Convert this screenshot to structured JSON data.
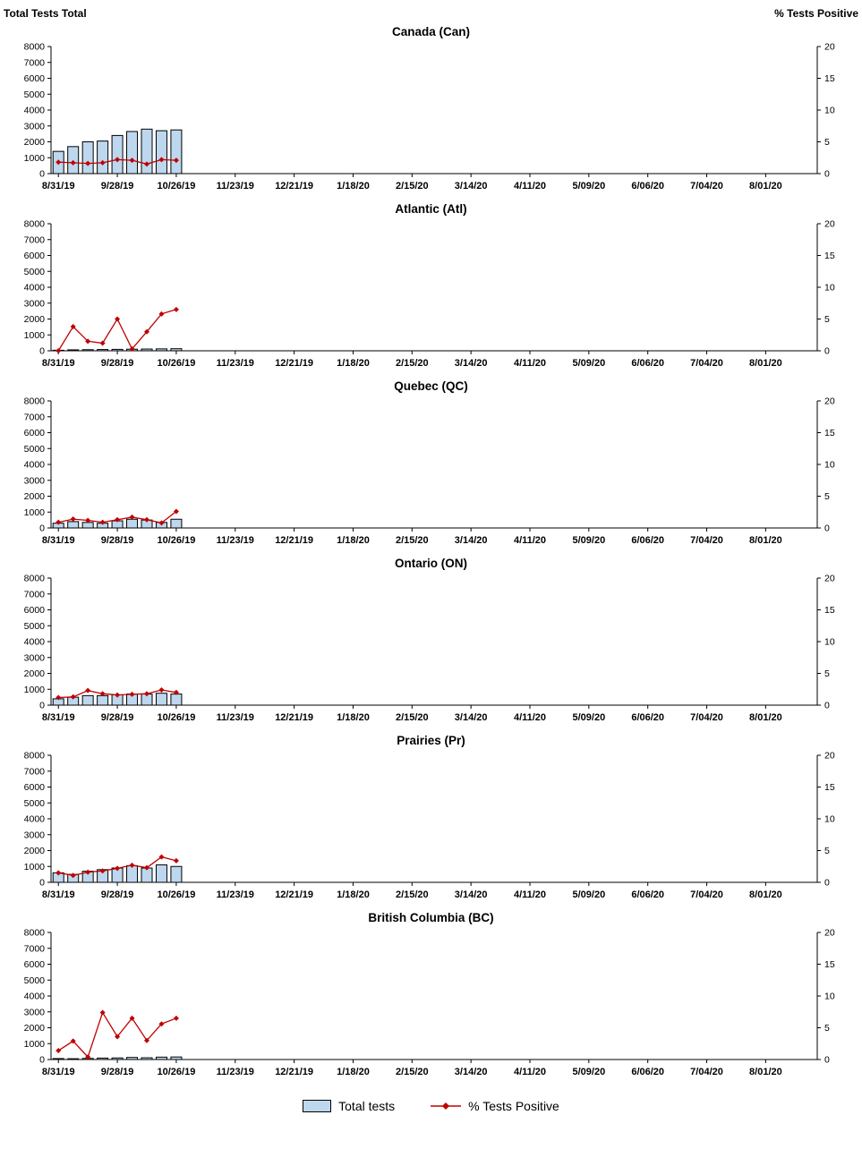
{
  "page": {
    "left_axis_header": "Total Tests Total",
    "right_axis_header": "% Tests Positive"
  },
  "legend": {
    "bar_label": "Total tests",
    "line_label": "% Tests Positive"
  },
  "colors": {
    "bar_fill": "#BDD7EE",
    "bar_border": "#000000",
    "line": "#C00000"
  },
  "axes": {
    "left_ticks": [
      8000,
      7000,
      6000,
      5000,
      4000,
      3000,
      2000,
      1000,
      0
    ],
    "right_ticks": [
      0,
      5,
      10,
      15,
      20
    ],
    "left_max": 8000,
    "right_max": 20,
    "x_labels": [
      "8/31/19",
      "9/28/19",
      "10/26/19",
      "11/23/19",
      "12/21/19",
      "1/18/20",
      "2/15/20",
      "3/14/20",
      "4/11/20",
      "5/09/20",
      "6/06/20",
      "7/04/20",
      "8/01/20"
    ],
    "weeks_total": 52,
    "label_every": 4
  },
  "chart_data": [
    {
      "type": "bar",
      "title": "Canada (Can)",
      "tests": [
        1400,
        1700,
        2000,
        2050,
        2400,
        2650,
        2800,
        2700,
        2750
      ],
      "pct_positive": [
        1.8,
        1.7,
        1.6,
        1.7,
        2.2,
        2.1,
        1.5,
        2.2,
        2.1
      ]
    },
    {
      "type": "bar",
      "title": "Atlantic (Atl)",
      "tests": [
        30,
        60,
        70,
        80,
        90,
        100,
        110,
        120,
        130
      ],
      "pct_positive": [
        0.0,
        3.8,
        1.5,
        1.2,
        5.0,
        0.3,
        3.0,
        5.8,
        6.5
      ]
    },
    {
      "type": "bar",
      "title": "Quebec (QC)",
      "tests": [
        300,
        400,
        350,
        300,
        450,
        550,
        500,
        350,
        550
      ],
      "pct_positive": [
        0.9,
        1.4,
        1.2,
        0.9,
        1.3,
        1.7,
        1.3,
        0.8,
        2.6
      ]
    },
    {
      "type": "bar",
      "title": "Ontario (ON)",
      "tests": [
        400,
        500,
        600,
        600,
        650,
        700,
        700,
        750,
        700
      ],
      "pct_positive": [
        1.2,
        1.3,
        2.3,
        1.8,
        1.6,
        1.7,
        1.8,
        2.4,
        2.0
      ]
    },
    {
      "type": "bar",
      "title": "Prairies (Pr)",
      "tests": [
        600,
        500,
        700,
        800,
        900,
        1050,
        900,
        1100,
        1000
      ],
      "pct_positive": [
        1.5,
        1.1,
        1.6,
        1.8,
        2.2,
        2.7,
        2.3,
        4.0,
        3.4
      ]
    },
    {
      "type": "bar",
      "title": "British Columbia (BC)",
      "tests": [
        60,
        50,
        70,
        90,
        100,
        130,
        110,
        150,
        160
      ],
      "pct_positive": [
        1.4,
        2.9,
        0.4,
        7.4,
        3.6,
        6.5,
        3.0,
        5.6,
        6.5
      ]
    }
  ]
}
